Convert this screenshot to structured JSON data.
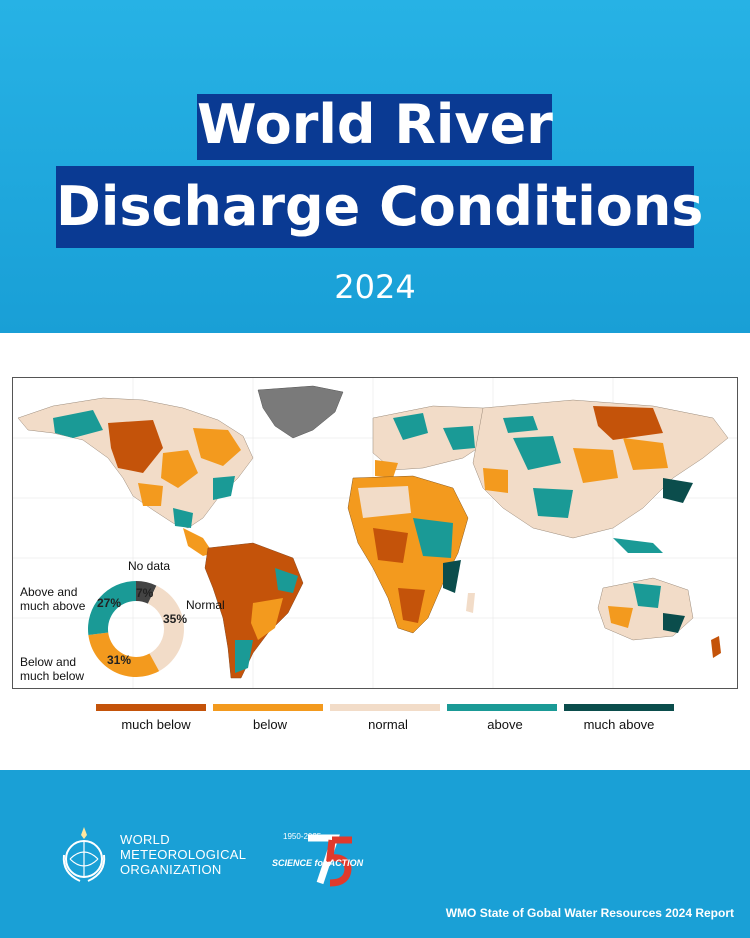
{
  "header": {
    "title_line1": "World River",
    "title_line2": "Discharge Conditions",
    "year": "2024"
  },
  "legend": {
    "items": [
      {
        "label": "much below",
        "color": "#c4530a"
      },
      {
        "label": "below",
        "color": "#f39a1e"
      },
      {
        "label": "normal",
        "color": "#f2dcc8"
      },
      {
        "label": "above",
        "color": "#1a9a96"
      },
      {
        "label": "much above",
        "color": "#0b4d4c"
      }
    ]
  },
  "donut": {
    "segments": [
      {
        "key": "no_data",
        "label": "No data",
        "pct": "7%",
        "value": 7,
        "color": "#444444"
      },
      {
        "key": "normal",
        "label": "Normal",
        "pct": "35%",
        "value": 35,
        "color": "#f2dcc8"
      },
      {
        "key": "below",
        "label": "Below and much below",
        "pct": "31%",
        "value": 31,
        "color": "#f39a1e"
      },
      {
        "key": "above",
        "label": "Above and much above",
        "pct": "27%",
        "value": 27,
        "color": "#1a9a96"
      }
    ],
    "label_no_data": "No data",
    "label_normal": "Normal",
    "label_below_1": "Below and",
    "label_below_2": "much below",
    "label_above_1": "Above and",
    "label_above_2": "much above"
  },
  "colors": {
    "header_bg": "#1aa0d6",
    "title_bg": "#0a3a93",
    "no_data": "#7a7a7a"
  },
  "footer": {
    "org_line1": "WORLD",
    "org_line2": "METEOROLOGICAL",
    "org_line3": "ORGANIZATION",
    "anniv_years": "1950-2025",
    "anniv_text": "SCIENCE for ACTION",
    "report": "WMO State of Gobal Water Resources 2024 Report"
  },
  "icons": [
    "wmo-emblem-icon",
    "wmo-75-logo-icon"
  ]
}
